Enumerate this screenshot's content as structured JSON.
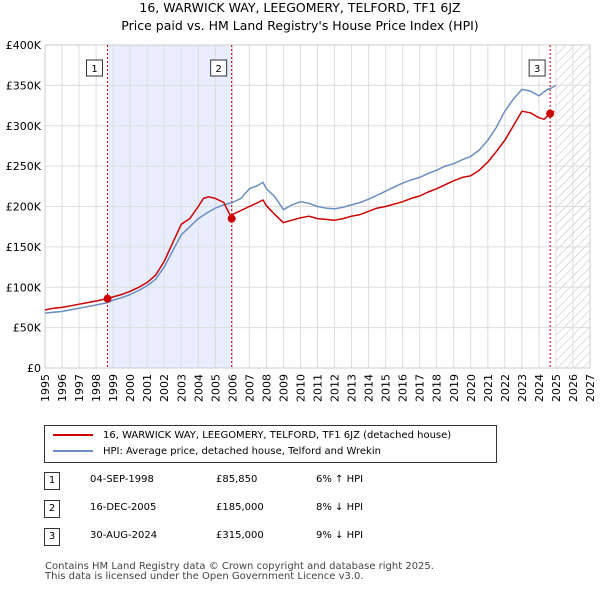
{
  "title_line1": "16, WARWICK WAY, LEEGOMERY, TELFORD, TF1 6JZ",
  "title_line2": "Price paid vs. HM Land Registry's House Price Index (HPI)",
  "legend": {
    "property_label": "16, WARWICK WAY, LEEGOMERY, TELFORD, TF1 6JZ (detached house)",
    "hpi_label": "HPI: Average price, detached house, Telford and Wrekin"
  },
  "transactions": [
    {
      "num": "1",
      "date": "04-SEP-1998",
      "price": "£85,850",
      "hpi": "6% ↑ HPI"
    },
    {
      "num": "2",
      "date": "16-DEC-2005",
      "price": "£185,000",
      "hpi": "8% ↓ HPI"
    },
    {
      "num": "3",
      "date": "30-AUG-2024",
      "price": "£315,000",
      "hpi": "9% ↓ HPI"
    }
  ],
  "footer_line1": "Contains HM Land Registry data © Crown copyright and database right 2025.",
  "footer_line2": "This data is licensed under the Open Government Licence v3.0.",
  "colors": {
    "property": "#cc0000",
    "hpi": "#6a8fc0",
    "shade": "#e8eeff",
    "hatch": "#bbbbbb",
    "grid": "#dddddd",
    "marker_line": "#cc0000"
  },
  "chart_data": {
    "type": "line",
    "title": "Price paid vs. HM Land Registry's House Price Index (HPI)",
    "xlim": [
      1995,
      2027
    ],
    "ylim": [
      0,
      400000
    ],
    "x_ticks": [
      1995,
      1996,
      1997,
      1998,
      1999,
      2000,
      2001,
      2002,
      2003,
      2004,
      2005,
      2006,
      2007,
      2008,
      2009,
      2010,
      2011,
      2012,
      2013,
      2014,
      2015,
      2016,
      2017,
      2018,
      2019,
      2020,
      2021,
      2022,
      2023,
      2024,
      2025,
      2026,
      2027
    ],
    "y_ticks": [
      {
        "value": 0,
        "label": "£0"
      },
      {
        "value": 50000,
        "label": "£50K"
      },
      {
        "value": 100000,
        "label": "£100K"
      },
      {
        "value": 150000,
        "label": "£150K"
      },
      {
        "value": 200000,
        "label": "£200K"
      },
      {
        "value": 250000,
        "label": "£250K"
      },
      {
        "value": 300000,
        "label": "£300K"
      },
      {
        "value": 350000,
        "label": "£350K"
      },
      {
        "value": 400000,
        "label": "£400K"
      }
    ],
    "shaded_ranges": [
      [
        1998.67,
        2005.96
      ]
    ],
    "future_from": 2025.0,
    "grid": true,
    "series": [
      {
        "name": "16, WARWICK WAY, LEEGOMERY, TELFORD, TF1 6JZ (detached house)",
        "x": [
          1995,
          1995.5,
          1996,
          1996.5,
          1997,
          1997.5,
          1998,
          1998.67,
          1999,
          1999.5,
          2000,
          2000.5,
          2001,
          2001.5,
          2002,
          2002.5,
          2003,
          2003.5,
          2004,
          2004.3,
          2004.6,
          2005,
          2005.5,
          2005.96,
          2006,
          2006.5,
          2007,
          2007.5,
          2007.8,
          2008,
          2008.5,
          2009,
          2009.5,
          2010,
          2010.5,
          2011,
          2011.5,
          2012,
          2012.5,
          2013,
          2013.5,
          2014,
          2014.5,
          2015,
          2015.5,
          2016,
          2016.5,
          2017,
          2017.5,
          2018,
          2018.5,
          2019,
          2019.5,
          2020,
          2020.5,
          2021,
          2021.5,
          2022,
          2022.5,
          2023,
          2023.5,
          2024,
          2024.3,
          2024.66,
          2024.9
        ],
        "y": [
          72000,
          74000,
          75000,
          77000,
          79000,
          81000,
          83000,
          85850,
          88000,
          91000,
          95000,
          100000,
          106000,
          115000,
          132000,
          155000,
          178000,
          185000,
          200000,
          210000,
          212000,
          210000,
          205000,
          185000,
          190000,
          195000,
          200000,
          205000,
          208000,
          201000,
          190000,
          180000,
          183000,
          186000,
          188000,
          185000,
          184000,
          183000,
          185000,
          188000,
          190000,
          194000,
          198000,
          200000,
          203000,
          206000,
          210000,
          213000,
          218000,
          222000,
          227000,
          232000,
          236000,
          238000,
          245000,
          255000,
          268000,
          282000,
          300000,
          318000,
          316000,
          310000,
          308000,
          315000,
          318000
        ]
      },
      {
        "name": "HPI: Average price, detached house, Telford and Wrekin",
        "x": [
          1995,
          1995.5,
          1996,
          1996.5,
          1997,
          1997.5,
          1998,
          1998.67,
          1999,
          1999.5,
          2000,
          2000.5,
          2001,
          2001.5,
          2002,
          2002.5,
          2003,
          2003.5,
          2004,
          2004.5,
          2005,
          2005.5,
          2006,
          2006.5,
          2007,
          2007.5,
          2007.8,
          2008,
          2008.5,
          2009,
          2009.5,
          2010,
          2010.5,
          2011,
          2011.5,
          2012,
          2012.5,
          2013,
          2013.5,
          2014,
          2014.5,
          2015,
          2015.5,
          2016,
          2016.5,
          2017,
          2017.5,
          2018,
          2018.5,
          2019,
          2019.5,
          2020,
          2020.5,
          2021,
          2021.5,
          2022,
          2022.5,
          2023,
          2023.5,
          2024,
          2024.5,
          2024.66,
          2025
        ],
        "y": [
          68000,
          69000,
          70000,
          72000,
          74000,
          76000,
          78000,
          81000,
          84000,
          87000,
          91000,
          96000,
          102000,
          110000,
          125000,
          145000,
          165000,
          175000,
          185000,
          192000,
          198000,
          202000,
          205000,
          210000,
          222000,
          226000,
          230000,
          222000,
          212000,
          196000,
          202000,
          206000,
          204000,
          200000,
          198000,
          197000,
          199000,
          202000,
          205000,
          209000,
          214000,
          219000,
          224000,
          229000,
          233000,
          236000,
          241000,
          245000,
          250000,
          253000,
          258000,
          262000,
          270000,
          282000,
          298000,
          318000,
          333000,
          345000,
          343000,
          337000,
          345000,
          346000,
          350000
        ]
      }
    ],
    "sale_markers": [
      {
        "label": "1",
        "x": 1998.67,
        "y": 85850
      },
      {
        "label": "2",
        "x": 2005.96,
        "y": 185000
      },
      {
        "label": "3",
        "x": 2024.66,
        "y": 315000
      }
    ]
  }
}
